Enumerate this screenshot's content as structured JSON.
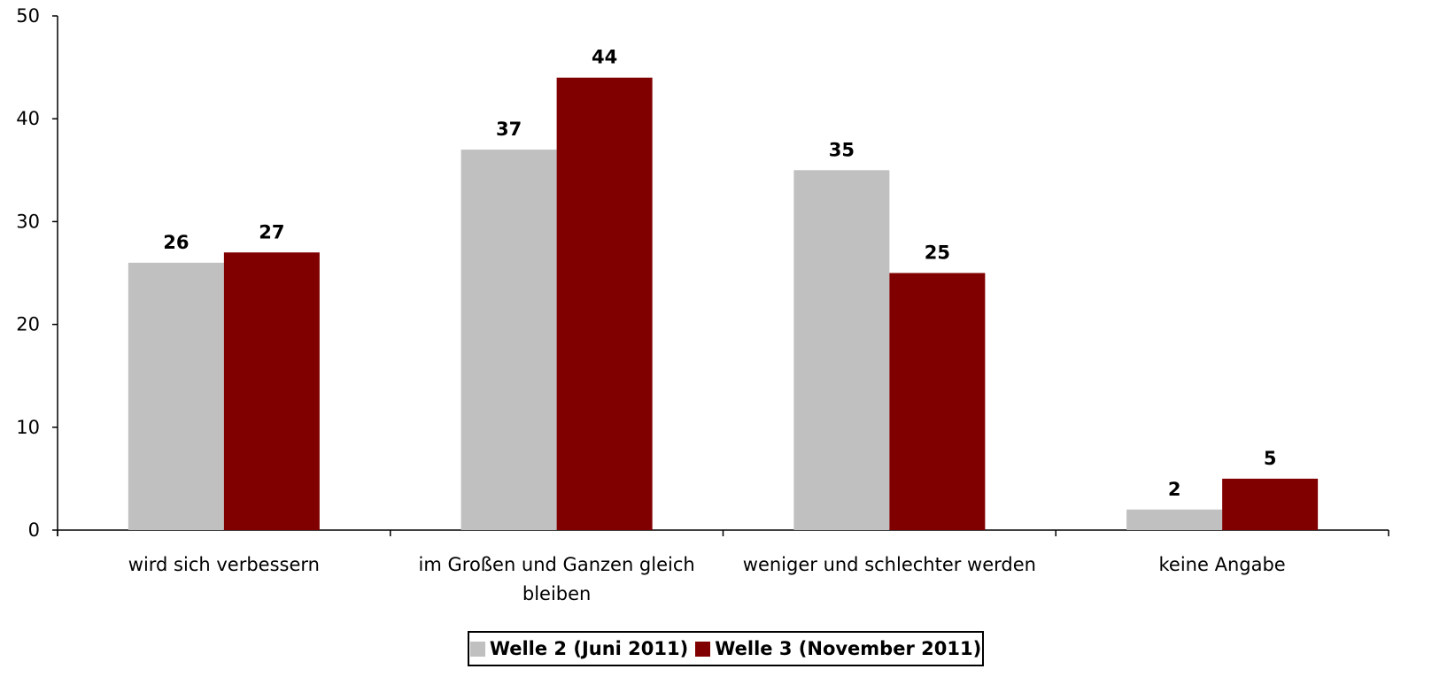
{
  "chart_data": {
    "type": "bar",
    "categories": [
      [
        "wird sich verbessern"
      ],
      [
        "im Großen und Ganzen gleich",
        "bleiben"
      ],
      [
        "weniger und schlechter werden"
      ],
      [
        "keine Angabe"
      ]
    ],
    "series": [
      {
        "name": "Welle 2 (Juni 2011)",
        "color": "#c0c0c0",
        "values": [
          26,
          37,
          35,
          2
        ]
      },
      {
        "name": "Welle 3 (November 2011)",
        "color": "#800000",
        "values": [
          27,
          44,
          25,
          5
        ]
      }
    ],
    "ylim": [
      0,
      50
    ],
    "yticks": [
      0,
      10,
      20,
      30,
      40,
      50
    ],
    "grid": false,
    "legend_position": "bottom"
  }
}
